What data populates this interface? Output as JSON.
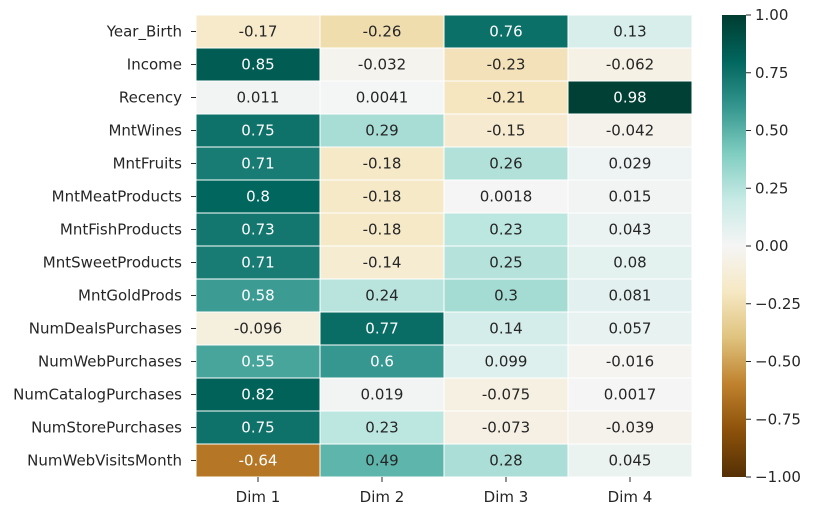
{
  "chart_data": {
    "type": "heatmap",
    "rows": [
      "Year_Birth",
      "Income",
      "Recency",
      "MntWines",
      "MntFruits",
      "MntMeatProducts",
      "MntFishProducts",
      "MntSweetProducts",
      "MntGoldProds",
      "NumDealsPurchases",
      "NumWebPurchases",
      "NumCatalogPurchases",
      "NumStorePurchases",
      "NumWebVisitsMonth"
    ],
    "columns": [
      "Dim 1",
      "Dim 2",
      "Dim 3",
      "Dim 4"
    ],
    "values": [
      [
        -0.17,
        -0.26,
        0.76,
        0.13
      ],
      [
        0.85,
        -0.032,
        -0.23,
        -0.062
      ],
      [
        0.011,
        0.0041,
        -0.21,
        0.98
      ],
      [
        0.75,
        0.29,
        -0.15,
        -0.042
      ],
      [
        0.71,
        -0.18,
        0.26,
        0.029
      ],
      [
        0.8,
        -0.18,
        0.0018,
        0.015
      ],
      [
        0.73,
        -0.18,
        0.23,
        0.043
      ],
      [
        0.71,
        -0.14,
        0.25,
        0.08
      ],
      [
        0.58,
        0.24,
        0.3,
        0.081
      ],
      [
        -0.096,
        0.77,
        0.14,
        0.057
      ],
      [
        0.55,
        0.6,
        0.099,
        -0.016
      ],
      [
        0.82,
        0.019,
        -0.075,
        0.0017
      ],
      [
        0.75,
        0.23,
        -0.073,
        -0.039
      ],
      [
        -0.64,
        0.49,
        0.28,
        0.045
      ]
    ],
    "labels": [
      [
        "-0.17",
        "-0.26",
        "0.76",
        "0.13"
      ],
      [
        "0.85",
        "-0.032",
        "-0.23",
        "-0.062"
      ],
      [
        "0.011",
        "0.0041",
        "-0.21",
        "0.98"
      ],
      [
        "0.75",
        "0.29",
        "-0.15",
        "-0.042"
      ],
      [
        "0.71",
        "-0.18",
        "0.26",
        "0.029"
      ],
      [
        "0.8",
        "-0.18",
        "0.0018",
        "0.015"
      ],
      [
        "0.73",
        "-0.18",
        "0.23",
        "0.043"
      ],
      [
        "0.71",
        "-0.14",
        "0.25",
        "0.08"
      ],
      [
        "0.58",
        "0.24",
        "0.3",
        "0.081"
      ],
      [
        "-0.096",
        "0.77",
        "0.14",
        "0.057"
      ],
      [
        "0.55",
        "0.6",
        "0.099",
        "-0.016"
      ],
      [
        "0.82",
        "0.019",
        "-0.075",
        "0.0017"
      ],
      [
        "0.75",
        "0.23",
        "-0.073",
        "-0.039"
      ],
      [
        "-0.64",
        "0.49",
        "0.28",
        "0.045"
      ]
    ],
    "colormap": "BrBG",
    "vmin": -1,
    "vmax": 1,
    "colorbar": {
      "ticks": [
        1.0,
        0.75,
        0.5,
        0.25,
        0.0,
        -0.25,
        -0.5,
        -0.75,
        -1.0
      ],
      "tick_labels": [
        "1.00",
        "0.75",
        "0.50",
        "0.25",
        "0.00",
        "−0.25",
        "−0.50",
        "−0.75",
        "−1.00"
      ],
      "position": "right"
    },
    "colors": {
      "text_dark": "#262626",
      "text_light": "#ffffff",
      "grid": "#ffffff",
      "cmap_stops": [
        "#543005",
        "#8c510a",
        "#bf812d",
        "#dfc27d",
        "#f6e8c3",
        "#f5f5f5",
        "#c7eae5",
        "#80cdc1",
        "#35978f",
        "#01665e",
        "#003c30"
      ]
    }
  }
}
